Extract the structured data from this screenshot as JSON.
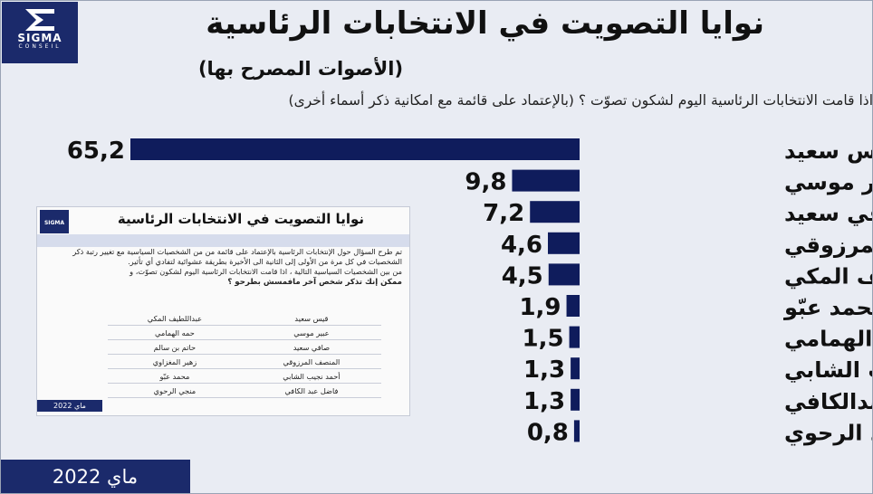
{
  "logo": {
    "name": "SIGMA",
    "sub": "CONSEIL"
  },
  "title": "نوايا التصويت في الانتخابات الرئاسية",
  "subtitle": "(الأصوات المصرح بها)",
  "question": "اذا قامت الانتخابات الرئاسية اليوم لشكون تصوّت ؟ (بالإعتماد على قائمة مع امكانية ذكر أسماء أخرى)",
  "footer": "ماي 2022",
  "colors": {
    "navy": "#1b2a6b",
    "bar": "#0f1c5c"
  },
  "chart_data": {
    "type": "bar",
    "orientation": "horizontal",
    "xlim": [
      0,
      65.2
    ],
    "categories": [
      "قيس سعيد",
      "عبير موسي",
      "صافي سعيد",
      "المنصف المرزوقي",
      "عبداللطيف المكي",
      "محمد عبّو",
      "حمه الهمامي",
      "أحمد نجيب الشابي",
      "فاضل عبدالكافي",
      "منجي الرحوي"
    ],
    "values": [
      65.2,
      9.8,
      7.2,
      4.6,
      4.5,
      1.9,
      1.5,
      1.3,
      1.3,
      0.8
    ],
    "value_labels": [
      "65,2",
      "9,8",
      "7,2",
      "4,6",
      "4,5",
      "1,9",
      "1,5",
      "1,3",
      "1,3",
      "0,8"
    ]
  },
  "inset": {
    "title": "نوايا التصويت في الانتخابات الرئاسية",
    "logo": "SIGMA",
    "text": "تم طرح السؤال حول الإنتخابات الرئاسية بالإعتماد على قائمة من من الشخصيات السياسية مع تغيير رتبة ذكر الشخصيات في كل مرة من الأولى إلى الثانية الى الأخيرة بطريقة عشوائية لتفادي أي تأثير.",
    "text2": "من بين الشخصيات السياسية التالية ، اذا قامت الانتخابات الرئاسية اليوم لشكون تصوّت، و",
    "text3": "ممكن إنك تذكر شخص آخر مافمسش بطرحو ؟",
    "rows": [
      [
        "قيس سعيد",
        "عبداللطيف المكي"
      ],
      [
        "عبير موسي",
        "حمه الهمامي"
      ],
      [
        "صافي سعيد",
        "حاتم بن سالم"
      ],
      [
        "المنصف المرزوقي",
        "زهير المغزاوي"
      ],
      [
        "أحمد نجيب الشابي",
        "محمد عبّو"
      ],
      [
        "فاضل عبد الكافي",
        "منجي الرحوي"
      ]
    ],
    "date": "ماي 2022"
  }
}
